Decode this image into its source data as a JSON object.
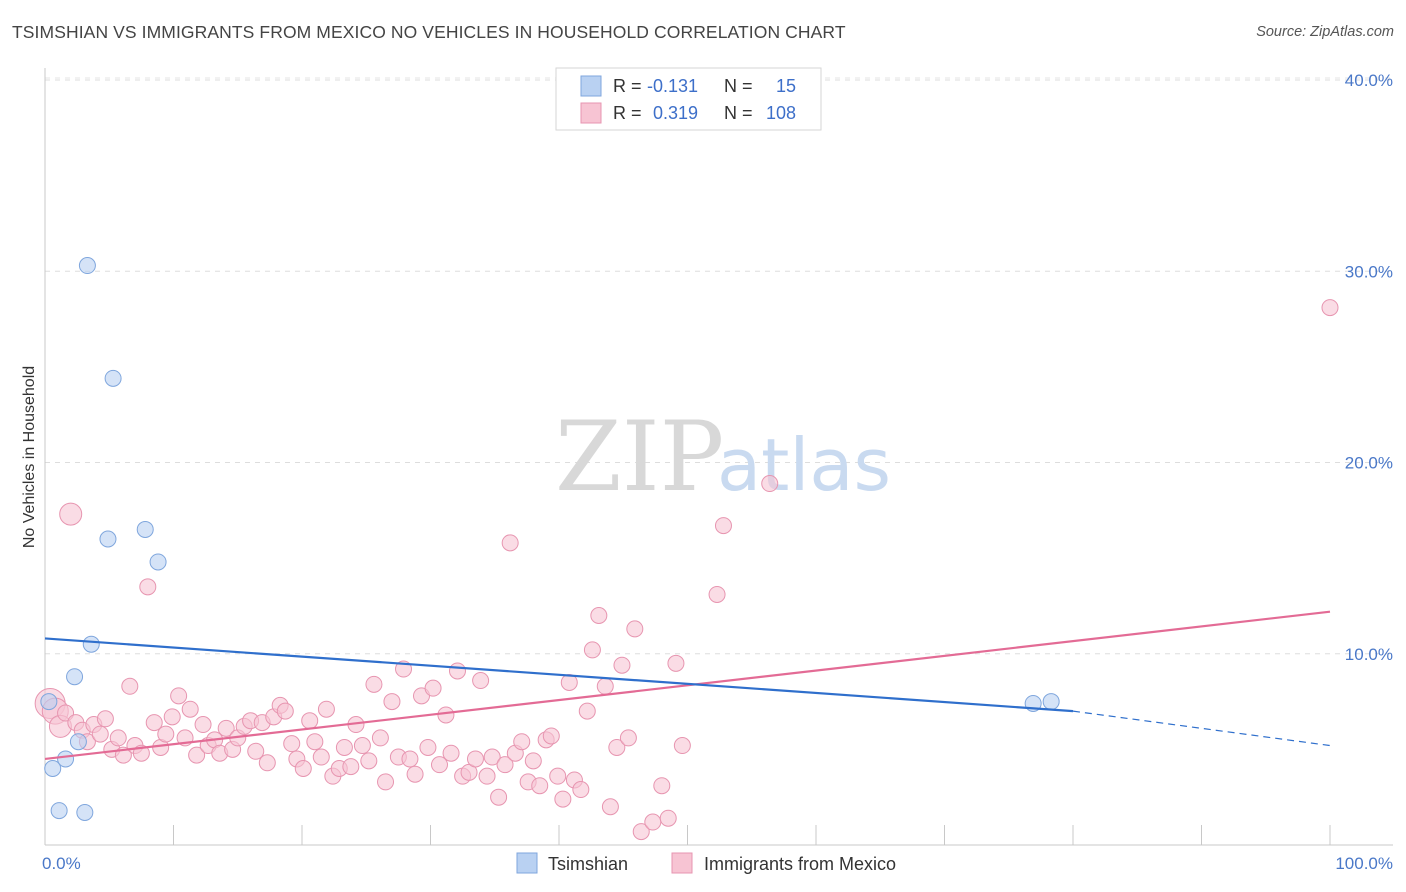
{
  "title": "TSIMSHIAN VS IMMIGRANTS FROM MEXICO NO VEHICLES IN HOUSEHOLD CORRELATION CHART",
  "source": "Source: ZipAtlas.com",
  "watermark": {
    "zip": "ZIP",
    "atlas": "atlas"
  },
  "colors": {
    "blue_fill": "#b9d1f2",
    "blue_stroke": "#7fa6dd",
    "blue_line": "#2f6fcc",
    "pink_fill": "#f7c4d3",
    "pink_stroke": "#e795b0",
    "pink_line": "#e36b95",
    "tick_text": "#4a78c8"
  },
  "legend": {
    "rows": [
      {
        "r_label": "R =",
        "r_value": "-0.131",
        "n_label": "N =",
        "n_value": "15"
      },
      {
        "r_label": "R =",
        "r_value": "0.319",
        "n_label": "N =",
        "n_value": "108"
      }
    ]
  },
  "bottom_legend": [
    "Tsimshian",
    "Immigrants from Mexico"
  ],
  "chart_data": {
    "type": "scatter",
    "title": "TSIMSHIAN VS IMMIGRANTS FROM MEXICO NO VEHICLES IN HOUSEHOLD CORRELATION CHART",
    "xlabel": "",
    "ylabel": "No Vehicles in Household",
    "xlim": [
      0,
      100
    ],
    "ylim": [
      0,
      40
    ],
    "x_tick_labels": [
      "0.0%",
      "100.0%"
    ],
    "y_ticks": [
      10,
      20,
      30,
      40
    ],
    "y_tick_labels": [
      "10.0%",
      "20.0%",
      "30.0%",
      "40.0%"
    ],
    "grid": "horizontal dashed",
    "legend_position": "top-center",
    "series": [
      {
        "name": "Tsimshian",
        "color": "#b9d1f2",
        "points": [
          [
            0.3,
            7.5
          ],
          [
            0.6,
            4.0
          ],
          [
            1.1,
            1.8
          ],
          [
            1.6,
            4.5
          ],
          [
            2.3,
            8.8
          ],
          [
            2.6,
            5.4
          ],
          [
            3.1,
            1.7
          ],
          [
            3.3,
            30.3
          ],
          [
            3.6,
            10.5
          ],
          [
            4.9,
            16.0
          ],
          [
            5.3,
            24.4
          ],
          [
            7.8,
            16.5
          ],
          [
            8.8,
            14.8
          ],
          [
            76.9,
            7.4
          ],
          [
            78.3,
            7.5
          ]
        ],
        "trend": {
          "x0": 0,
          "y0": 10.8,
          "x1": 80,
          "y1": 7.0,
          "dashed_to_x": 100,
          "dashed_to_y": 5.2
        }
      },
      {
        "name": "Immigrants from Mexico",
        "color": "#f7c4d3",
        "points": [
          [
            0.4,
            7.4
          ],
          [
            0.8,
            7.0
          ],
          [
            1.2,
            6.2
          ],
          [
            1.6,
            6.9
          ],
          [
            2.0,
            17.3
          ],
          [
            2.4,
            6.4
          ],
          [
            2.9,
            6.0
          ],
          [
            3.3,
            5.4
          ],
          [
            3.8,
            6.3
          ],
          [
            4.3,
            5.8
          ],
          [
            4.7,
            6.6
          ],
          [
            5.2,
            5.0
          ],
          [
            5.7,
            5.6
          ],
          [
            6.1,
            4.7
          ],
          [
            6.6,
            8.3
          ],
          [
            7.0,
            5.2
          ],
          [
            7.5,
            4.8
          ],
          [
            8.0,
            13.5
          ],
          [
            8.5,
            6.4
          ],
          [
            9.0,
            5.1
          ],
          [
            9.4,
            5.8
          ],
          [
            9.9,
            6.7
          ],
          [
            10.4,
            7.8
          ],
          [
            10.9,
            5.6
          ],
          [
            11.3,
            7.1
          ],
          [
            11.8,
            4.7
          ],
          [
            12.3,
            6.3
          ],
          [
            12.7,
            5.2
          ],
          [
            13.2,
            5.5
          ],
          [
            13.6,
            4.8
          ],
          [
            14.1,
            6.1
          ],
          [
            14.6,
            5.0
          ],
          [
            15.0,
            5.6
          ],
          [
            15.5,
            6.2
          ],
          [
            16.0,
            6.5
          ],
          [
            16.4,
            4.9
          ],
          [
            16.9,
            6.4
          ],
          [
            17.3,
            4.3
          ],
          [
            17.8,
            6.7
          ],
          [
            18.3,
            7.3
          ],
          [
            18.7,
            7.0
          ],
          [
            19.2,
            5.3
          ],
          [
            19.6,
            4.5
          ],
          [
            20.1,
            4.0
          ],
          [
            20.6,
            6.5
          ],
          [
            21.0,
            5.4
          ],
          [
            21.5,
            4.6
          ],
          [
            21.9,
            7.1
          ],
          [
            22.4,
            3.6
          ],
          [
            22.9,
            4.0
          ],
          [
            23.3,
            5.1
          ],
          [
            23.8,
            4.1
          ],
          [
            24.2,
            6.3
          ],
          [
            24.7,
            5.2
          ],
          [
            25.2,
            4.4
          ],
          [
            25.6,
            8.4
          ],
          [
            26.1,
            5.6
          ],
          [
            26.5,
            3.3
          ],
          [
            27.0,
            7.5
          ],
          [
            27.5,
            4.6
          ],
          [
            27.9,
            9.2
          ],
          [
            28.4,
            4.5
          ],
          [
            28.8,
            3.7
          ],
          [
            29.3,
            7.8
          ],
          [
            29.8,
            5.1
          ],
          [
            30.2,
            8.2
          ],
          [
            30.7,
            4.2
          ],
          [
            31.2,
            6.8
          ],
          [
            31.6,
            4.8
          ],
          [
            32.1,
            9.1
          ],
          [
            32.5,
            3.6
          ],
          [
            33.0,
            3.8
          ],
          [
            33.5,
            4.5
          ],
          [
            33.9,
            8.6
          ],
          [
            34.4,
            3.6
          ],
          [
            34.8,
            4.6
          ],
          [
            35.3,
            2.5
          ],
          [
            35.8,
            4.2
          ],
          [
            36.2,
            15.8
          ],
          [
            36.6,
            4.8
          ],
          [
            37.1,
            5.4
          ],
          [
            37.6,
            3.3
          ],
          [
            38.0,
            4.4
          ],
          [
            38.5,
            3.1
          ],
          [
            39.0,
            5.5
          ],
          [
            39.4,
            5.7
          ],
          [
            39.9,
            3.6
          ],
          [
            40.3,
            2.4
          ],
          [
            40.8,
            8.5
          ],
          [
            41.2,
            3.4
          ],
          [
            41.7,
            2.9
          ],
          [
            42.2,
            7.0
          ],
          [
            42.6,
            10.2
          ],
          [
            43.1,
            12.0
          ],
          [
            43.6,
            8.3
          ],
          [
            44.0,
            2.0
          ],
          [
            44.5,
            5.1
          ],
          [
            44.9,
            9.4
          ],
          [
            45.4,
            5.6
          ],
          [
            45.9,
            11.3
          ],
          [
            46.4,
            0.7
          ],
          [
            47.3,
            1.2
          ],
          [
            48.0,
            3.1
          ],
          [
            48.5,
            1.4
          ],
          [
            49.1,
            9.5
          ],
          [
            49.6,
            5.2
          ],
          [
            52.3,
            13.1
          ],
          [
            52.8,
            16.7
          ],
          [
            56.4,
            18.9
          ],
          [
            100.0,
            28.1
          ]
        ],
        "trend": {
          "x0": 0,
          "y0": 4.5,
          "x1": 100,
          "y1": 12.2
        }
      }
    ]
  }
}
